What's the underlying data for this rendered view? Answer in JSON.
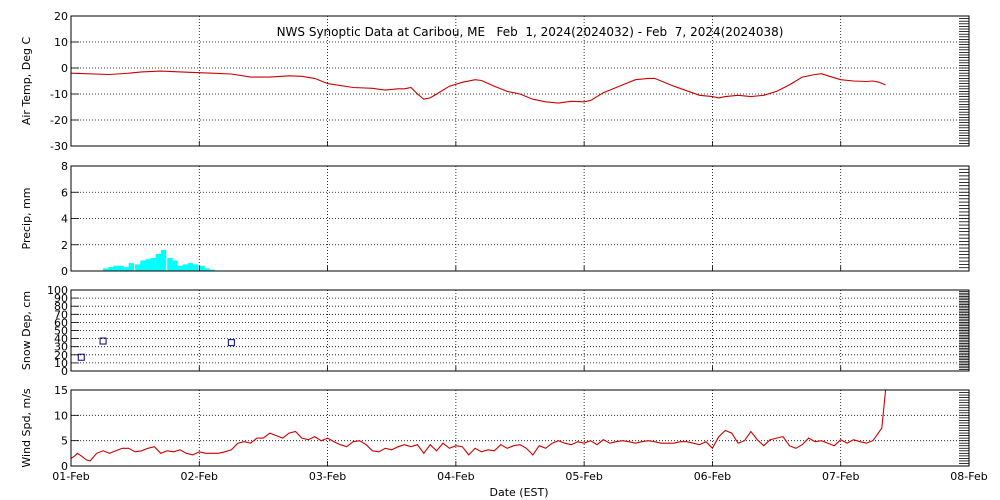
{
  "chart_data": {
    "type": "line",
    "title": "NWS Synoptic Data at Caribou, ME   Feb  1, 2024(2024032) - Feb  7, 2024(2024038)",
    "xlabel": "Date (EST)",
    "x_axis": {
      "range_days": [
        0,
        7
      ],
      "tick_labels": [
        "01-Feb",
        "02-Feb",
        "03-Feb",
        "04-Feb",
        "05-Feb",
        "06-Feb",
        "07-Feb",
        "08-Feb"
      ],
      "grid": true
    },
    "panels": [
      {
        "key": "temp",
        "ylabel": "Air Temp, Deg C",
        "type": "line",
        "ylim": [
          -30,
          20
        ],
        "yticks": [
          -30,
          -20,
          -10,
          0,
          10,
          20
        ],
        "color": "#cc0000",
        "points": [
          [
            0.0,
            -2.0
          ],
          [
            0.3,
            -2.5
          ],
          [
            0.45,
            -2.0
          ],
          [
            0.55,
            -1.5
          ],
          [
            0.7,
            -1.2
          ],
          [
            0.9,
            -1.6
          ],
          [
            1.1,
            -2.0
          ],
          [
            1.25,
            -2.3
          ],
          [
            1.4,
            -3.5
          ],
          [
            1.55,
            -3.5
          ],
          [
            1.7,
            -3.0
          ],
          [
            1.8,
            -3.2
          ],
          [
            1.9,
            -4.0
          ],
          [
            2.0,
            -6.0
          ],
          [
            2.2,
            -7.5
          ],
          [
            2.35,
            -7.8
          ],
          [
            2.45,
            -8.5
          ],
          [
            2.55,
            -8.0
          ],
          [
            2.6,
            -8.0
          ],
          [
            2.65,
            -7.5
          ],
          [
            2.7,
            -10.0
          ],
          [
            2.75,
            -12.0
          ],
          [
            2.8,
            -11.5
          ],
          [
            2.85,
            -10.0
          ],
          [
            2.95,
            -7.0
          ],
          [
            3.05,
            -5.5
          ],
          [
            3.15,
            -4.5
          ],
          [
            3.2,
            -4.8
          ],
          [
            3.3,
            -7.0
          ],
          [
            3.4,
            -9.0
          ],
          [
            3.5,
            -10.0
          ],
          [
            3.6,
            -12.0
          ],
          [
            3.7,
            -13.0
          ],
          [
            3.8,
            -13.5
          ],
          [
            3.9,
            -12.8
          ],
          [
            4.0,
            -13.0
          ],
          [
            4.05,
            -12.5
          ],
          [
            4.15,
            -9.5
          ],
          [
            4.3,
            -6.5
          ],
          [
            4.4,
            -4.5
          ],
          [
            4.5,
            -4.0
          ],
          [
            4.55,
            -4.0
          ],
          [
            4.7,
            -7.0
          ],
          [
            4.9,
            -10.5
          ],
          [
            5.0,
            -11.0
          ],
          [
            5.05,
            -11.5
          ],
          [
            5.1,
            -11.0
          ],
          [
            5.2,
            -10.5
          ],
          [
            5.3,
            -11.0
          ],
          [
            5.4,
            -10.5
          ],
          [
            5.5,
            -9.0
          ],
          [
            5.6,
            -6.5
          ],
          [
            5.7,
            -3.5
          ],
          [
            5.8,
            -2.5
          ],
          [
            5.85,
            -2.2
          ],
          [
            5.9,
            -3.0
          ],
          [
            6.0,
            -4.5
          ],
          [
            6.1,
            -5.0
          ],
          [
            6.2,
            -5.2
          ],
          [
            6.25,
            -5.0
          ],
          [
            6.3,
            -5.5
          ],
          [
            6.35,
            -6.5
          ]
        ]
      },
      {
        "key": "precip",
        "ylabel": "Precip, mm",
        "type": "bar",
        "ylim": [
          0,
          8
        ],
        "yticks": [
          0,
          2,
          4,
          6,
          8
        ],
        "color": "#00ffff",
        "bar_width_days": 0.042,
        "bars": [
          [
            0.25,
            0.2
          ],
          [
            0.29,
            0.3
          ],
          [
            0.33,
            0.4
          ],
          [
            0.37,
            0.4
          ],
          [
            0.41,
            0.3
          ],
          [
            0.45,
            0.6
          ],
          [
            0.5,
            0.5
          ],
          [
            0.54,
            0.8
          ],
          [
            0.58,
            0.9
          ],
          [
            0.62,
            1.0
          ],
          [
            0.66,
            1.3
          ],
          [
            0.7,
            1.6
          ],
          [
            0.75,
            1.0
          ],
          [
            0.79,
            0.8
          ],
          [
            0.83,
            0.4
          ],
          [
            0.87,
            0.5
          ],
          [
            0.91,
            0.6
          ],
          [
            0.95,
            0.5
          ],
          [
            1.0,
            0.4
          ],
          [
            1.04,
            0.2
          ],
          [
            1.08,
            0.1
          ]
        ]
      },
      {
        "key": "snow",
        "ylabel": "Snow Dep, cm",
        "type": "scatter",
        "ylim": [
          0,
          100
        ],
        "yticks": [
          0,
          10,
          20,
          30,
          40,
          50,
          60,
          70,
          80,
          90,
          100
        ],
        "color": "#000080",
        "points": [
          [
            0.08,
            17
          ],
          [
            0.25,
            37
          ],
          [
            1.25,
            35
          ]
        ]
      },
      {
        "key": "wind",
        "ylabel": "Wind Spd, m/s",
        "type": "line",
        "ylim": [
          0,
          15
        ],
        "yticks": [
          0,
          5,
          10,
          15
        ],
        "color": "#cc0000",
        "points": [
          [
            0.0,
            1.5
          ],
          [
            0.03,
            2.0
          ],
          [
            0.05,
            2.5
          ],
          [
            0.08,
            2.0
          ],
          [
            0.12,
            1.2
          ],
          [
            0.15,
            1.0
          ],
          [
            0.2,
            2.5
          ],
          [
            0.25,
            3.0
          ],
          [
            0.3,
            2.5
          ],
          [
            0.35,
            3.0
          ],
          [
            0.4,
            3.5
          ],
          [
            0.45,
            3.5
          ],
          [
            0.5,
            2.8
          ],
          [
            0.55,
            3.0
          ],
          [
            0.6,
            3.5
          ],
          [
            0.65,
            3.8
          ],
          [
            0.7,
            2.5
          ],
          [
            0.75,
            3.0
          ],
          [
            0.8,
            2.8
          ],
          [
            0.85,
            3.2
          ],
          [
            0.9,
            2.5
          ],
          [
            0.95,
            2.2
          ],
          [
            1.0,
            2.8
          ],
          [
            1.05,
            2.5
          ],
          [
            1.1,
            2.5
          ],
          [
            1.15,
            2.5
          ],
          [
            1.2,
            2.8
          ],
          [
            1.25,
            3.2
          ],
          [
            1.3,
            4.5
          ],
          [
            1.35,
            4.8
          ],
          [
            1.4,
            4.5
          ],
          [
            1.45,
            5.5
          ],
          [
            1.5,
            5.5
          ],
          [
            1.55,
            6.5
          ],
          [
            1.6,
            6.0
          ],
          [
            1.65,
            5.5
          ],
          [
            1.7,
            6.5
          ],
          [
            1.75,
            6.8
          ],
          [
            1.8,
            5.5
          ],
          [
            1.85,
            5.2
          ],
          [
            1.9,
            5.8
          ],
          [
            1.95,
            5.0
          ],
          [
            2.0,
            5.5
          ],
          [
            2.05,
            4.8
          ],
          [
            2.1,
            4.2
          ],
          [
            2.15,
            3.8
          ],
          [
            2.2,
            4.8
          ],
          [
            2.25,
            5.0
          ],
          [
            2.3,
            4.2
          ],
          [
            2.35,
            3.0
          ],
          [
            2.4,
            2.8
          ],
          [
            2.45,
            3.5
          ],
          [
            2.5,
            3.2
          ],
          [
            2.55,
            3.8
          ],
          [
            2.6,
            4.2
          ],
          [
            2.65,
            3.8
          ],
          [
            2.7,
            4.2
          ],
          [
            2.75,
            2.5
          ],
          [
            2.8,
            4.2
          ],
          [
            2.85,
            3.0
          ],
          [
            2.9,
            4.5
          ],
          [
            2.95,
            3.5
          ],
          [
            3.0,
            4.0
          ],
          [
            3.05,
            3.8
          ],
          [
            3.1,
            2.2
          ],
          [
            3.15,
            3.5
          ],
          [
            3.2,
            2.8
          ],
          [
            3.25,
            3.2
          ],
          [
            3.3,
            3.0
          ],
          [
            3.35,
            4.2
          ],
          [
            3.4,
            3.5
          ],
          [
            3.45,
            4.0
          ],
          [
            3.5,
            4.2
          ],
          [
            3.55,
            3.5
          ],
          [
            3.6,
            2.2
          ],
          [
            3.65,
            4.0
          ],
          [
            3.7,
            3.5
          ],
          [
            3.75,
            4.5
          ],
          [
            3.8,
            5.0
          ],
          [
            3.85,
            4.5
          ],
          [
            3.9,
            4.2
          ],
          [
            3.95,
            4.8
          ],
          [
            4.0,
            4.5
          ],
          [
            4.05,
            5.0
          ],
          [
            4.1,
            4.2
          ],
          [
            4.15,
            5.2
          ],
          [
            4.2,
            4.5
          ],
          [
            4.25,
            4.8
          ],
          [
            4.3,
            5.0
          ],
          [
            4.35,
            4.8
          ],
          [
            4.4,
            4.5
          ],
          [
            4.45,
            4.8
          ],
          [
            4.5,
            5.0
          ],
          [
            4.55,
            4.8
          ],
          [
            4.6,
            4.5
          ],
          [
            4.65,
            4.5
          ],
          [
            4.7,
            4.5
          ],
          [
            4.75,
            4.8
          ],
          [
            4.8,
            4.8
          ],
          [
            4.85,
            4.5
          ],
          [
            4.9,
            4.2
          ],
          [
            4.95,
            4.8
          ],
          [
            5.0,
            3.5
          ],
          [
            5.05,
            5.8
          ],
          [
            5.1,
            7.0
          ],
          [
            5.15,
            6.5
          ],
          [
            5.2,
            4.5
          ],
          [
            5.25,
            5.0
          ],
          [
            5.3,
            6.8
          ],
          [
            5.35,
            5.2
          ],
          [
            5.4,
            4.0
          ],
          [
            5.45,
            5.2
          ],
          [
            5.5,
            5.5
          ],
          [
            5.55,
            5.8
          ],
          [
            5.6,
            4.0
          ],
          [
            5.65,
            3.5
          ],
          [
            5.7,
            4.2
          ],
          [
            5.75,
            5.5
          ],
          [
            5.8,
            4.8
          ],
          [
            5.85,
            5.0
          ],
          [
            5.9,
            4.5
          ],
          [
            5.95,
            4.0
          ],
          [
            6.0,
            5.2
          ],
          [
            6.05,
            4.5
          ],
          [
            6.1,
            5.2
          ],
          [
            6.15,
            4.8
          ],
          [
            6.2,
            4.5
          ],
          [
            6.25,
            5.0
          ],
          [
            6.28,
            6.0
          ],
          [
            6.32,
            7.5
          ],
          [
            6.35,
            15.0
          ]
        ]
      }
    ]
  }
}
